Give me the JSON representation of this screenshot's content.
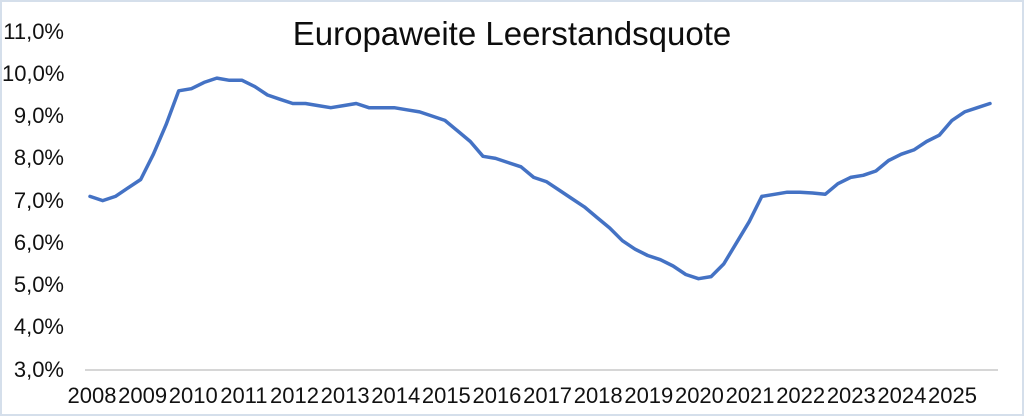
{
  "frame": {
    "background": "#ffffff",
    "border_color": "#d5dfeb"
  },
  "chart_data": {
    "type": "line",
    "title": "Europaweite Leerstandsquote",
    "xlabel": "",
    "ylabel": "",
    "legend": "none",
    "grid": "off",
    "decimal_style": "comma-percent",
    "line_color": "#4472C4",
    "axis_line_color": "#d6d6d6",
    "ylim": [
      3.0,
      11.0
    ],
    "y_tick_labels": [
      "11,0%",
      "10,0%",
      "9,0%",
      "8,0%",
      "7,0%",
      "6,0%",
      "5,0%",
      "4,0%",
      "3,0%"
    ],
    "y_tick_values": [
      11,
      10,
      9,
      8,
      7,
      6,
      5,
      4,
      3
    ],
    "x_tick_labels": [
      "2008",
      "2009",
      "2010",
      "2011",
      "2012",
      "2013",
      "2014",
      "2015",
      "2016",
      "2017",
      "2018",
      "2019",
      "2020",
      "2021",
      "2022",
      "2023",
      "2024",
      "2025"
    ],
    "points_per_year": 4,
    "x_start": "2008 Q1",
    "x_end": "2025 Q4",
    "values_pct": [
      7.1,
      7.0,
      7.1,
      7.3,
      7.5,
      8.1,
      8.8,
      9.6,
      9.65,
      9.8,
      9.9,
      9.85,
      9.85,
      9.7,
      9.5,
      9.4,
      9.3,
      9.3,
      9.25,
      9.2,
      9.25,
      9.3,
      9.2,
      9.2,
      9.2,
      9.15,
      9.1,
      9.0,
      8.9,
      8.65,
      8.4,
      8.05,
      8.0,
      7.9,
      7.8,
      7.55,
      7.45,
      7.25,
      7.05,
      6.85,
      6.6,
      6.35,
      6.05,
      5.85,
      5.7,
      5.6,
      5.45,
      5.25,
      5.15,
      5.2,
      5.5,
      6.0,
      6.5,
      7.1,
      7.15,
      7.2,
      7.2,
      7.18,
      7.15,
      7.4,
      7.55,
      7.6,
      7.7,
      7.95,
      8.1,
      8.2,
      8.4,
      8.55,
      8.9,
      9.1,
      9.2,
      9.3
    ]
  }
}
